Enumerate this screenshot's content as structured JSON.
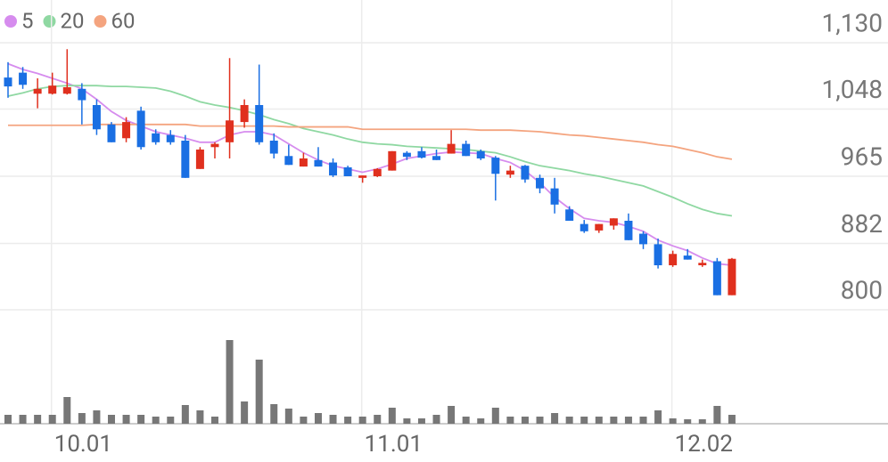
{
  "chart_data": {
    "type": "candlestick",
    "categories": [
      null,
      null,
      null,
      "10.01",
      null,
      null,
      null,
      null,
      null,
      null,
      null,
      null,
      null,
      null,
      null,
      null,
      null,
      null,
      null,
      null,
      null,
      null,
      null,
      null,
      "11.01",
      null,
      null,
      null,
      null,
      null,
      null,
      null,
      null,
      null,
      null,
      null,
      null,
      null,
      null,
      null,
      null,
      null,
      null,
      null,
      null,
      "12.02",
      null,
      null,
      null,
      null
    ],
    "open": [
      1087,
      1093,
      1067,
      1067,
      1067,
      1073,
      1053,
      1029,
      1012,
      1046,
      1018,
      1016,
      1009,
      974,
      1001,
      1007,
      1032,
      1053,
      1009,
      990,
      977,
      985,
      982,
      976,
      963,
      965,
      972,
      994,
      996,
      990,
      993,
      1005,
      996,
      988,
      967,
      978,
      963,
      950,
      924,
      906,
      898,
      904,
      910,
      894,
      881,
      855,
      867,
      855,
      860,
      818
    ],
    "high": [
      1106,
      1100,
      1086,
      1093,
      1122,
      1080,
      1060,
      1032,
      1038,
      1051,
      1023,
      1022,
      1016,
      1001,
      1007,
      1111,
      1060,
      1103,
      1018,
      1004,
      994,
      1001,
      987,
      978,
      966,
      975,
      996,
      996,
      1001,
      998,
      1022,
      1009,
      998,
      990,
      978,
      979,
      967,
      963,
      928,
      911,
      906,
      913,
      919,
      897,
      888,
      873,
      875,
      862,
      864,
      864
    ],
    "low": [
      1062,
      1073,
      1049,
      1066,
      1066,
      1029,
      1016,
      1007,
      1007,
      998,
      1004,
      1004,
      963,
      974,
      987,
      987,
      1025,
      1004,
      987,
      979,
      977,
      977,
      964,
      965,
      957,
      964,
      972,
      985,
      987,
      985,
      993,
      990,
      985,
      935,
      963,
      957,
      944,
      919,
      910,
      895,
      895,
      899,
      886,
      875,
      851,
      853,
      862,
      853,
      818,
      818
    ],
    "close": [
      1076,
      1078,
      1073,
      1077,
      1075,
      1059,
      1023,
      1007,
      1032,
      1001,
      1007,
      1007,
      963,
      998,
      1005,
      1034,
      1053,
      1007,
      993,
      979,
      987,
      977,
      966,
      965,
      966,
      974,
      996,
      989,
      988,
      985,
      1005,
      990,
      987,
      968,
      972,
      961,
      950,
      930,
      910,
      897,
      906,
      913,
      886,
      881,
      855,
      869,
      862,
      858,
      818,
      863
    ],
    "volume": [
      10,
      10,
      10,
      10,
      30,
      12,
      15,
      10,
      10,
      10,
      8,
      8,
      21,
      15,
      8,
      94,
      25,
      72,
      22,
      17,
      8,
      12,
      10,
      8,
      8,
      10,
      18,
      6,
      6,
      10,
      20,
      8,
      6,
      18,
      8,
      8,
      8,
      12,
      8,
      8,
      8,
      8,
      8,
      8,
      15,
      6,
      5,
      5,
      20,
      10
    ],
    "up_color": "#e0301e",
    "down_color": "#1a6fe3",
    "volume_color": "#777777",
    "series": [
      {
        "name": "5",
        "color": "#d68cee",
        "values": [
          1104,
          1097,
          1092,
          1086,
          1080,
          1073,
          1060,
          1045,
          1034,
          1027,
          1020,
          1016,
          1012,
          1007,
          1007,
          1016,
          1020,
          1020,
          1016,
          1005,
          994,
          985,
          978,
          974,
          970,
          974,
          980,
          987,
          990,
          993,
          995,
          994,
          993,
          987,
          982,
          972,
          957,
          939,
          925,
          913,
          910,
          908,
          903,
          897,
          886,
          879,
          873,
          864,
          857,
          855
        ]
      },
      {
        "name": "20",
        "color": "#8fd8a2",
        "values": [
          1064,
          1068,
          1073,
          1076,
          1077,
          1077,
          1077,
          1076,
          1076,
          1075,
          1074,
          1070,
          1064,
          1057,
          1053,
          1050,
          1046,
          1041,
          1035,
          1030,
          1024,
          1020,
          1016,
          1011,
          1007,
          1005,
          1004,
          1002,
          1001,
          1000,
          999,
          998,
          996,
          994,
          989,
          983,
          978,
          975,
          972,
          968,
          965,
          961,
          957,
          953,
          946,
          939,
          931,
          924,
          919,
          916
        ]
      },
      {
        "name": "60",
        "color": "#f4a47f",
        "values": [
          1028,
          1028,
          1028,
          1028,
          1028,
          1028,
          1029,
          1029,
          1029,
          1029,
          1029,
          1029,
          1029,
          1027,
          1027,
          1027,
          1027,
          1027,
          1027,
          1026,
          1026,
          1026,
          1026,
          1026,
          1023,
          1023,
          1023,
          1023,
          1023,
          1023,
          1023,
          1023,
          1022,
          1022,
          1022,
          1021,
          1020,
          1018,
          1016,
          1015,
          1013,
          1011,
          1009,
          1007,
          1004,
          1002,
          998,
          994,
          989,
          986
        ]
      }
    ],
    "ylim": [
      800,
      1130
    ],
    "yticks": [
      {
        "value": 1130,
        "label": "1,130"
      },
      {
        "value": 1048,
        "label": "1,048"
      },
      965,
      882,
      800
    ],
    "volume_ylim": [
      0,
      126
    ],
    "grid": true
  }
}
